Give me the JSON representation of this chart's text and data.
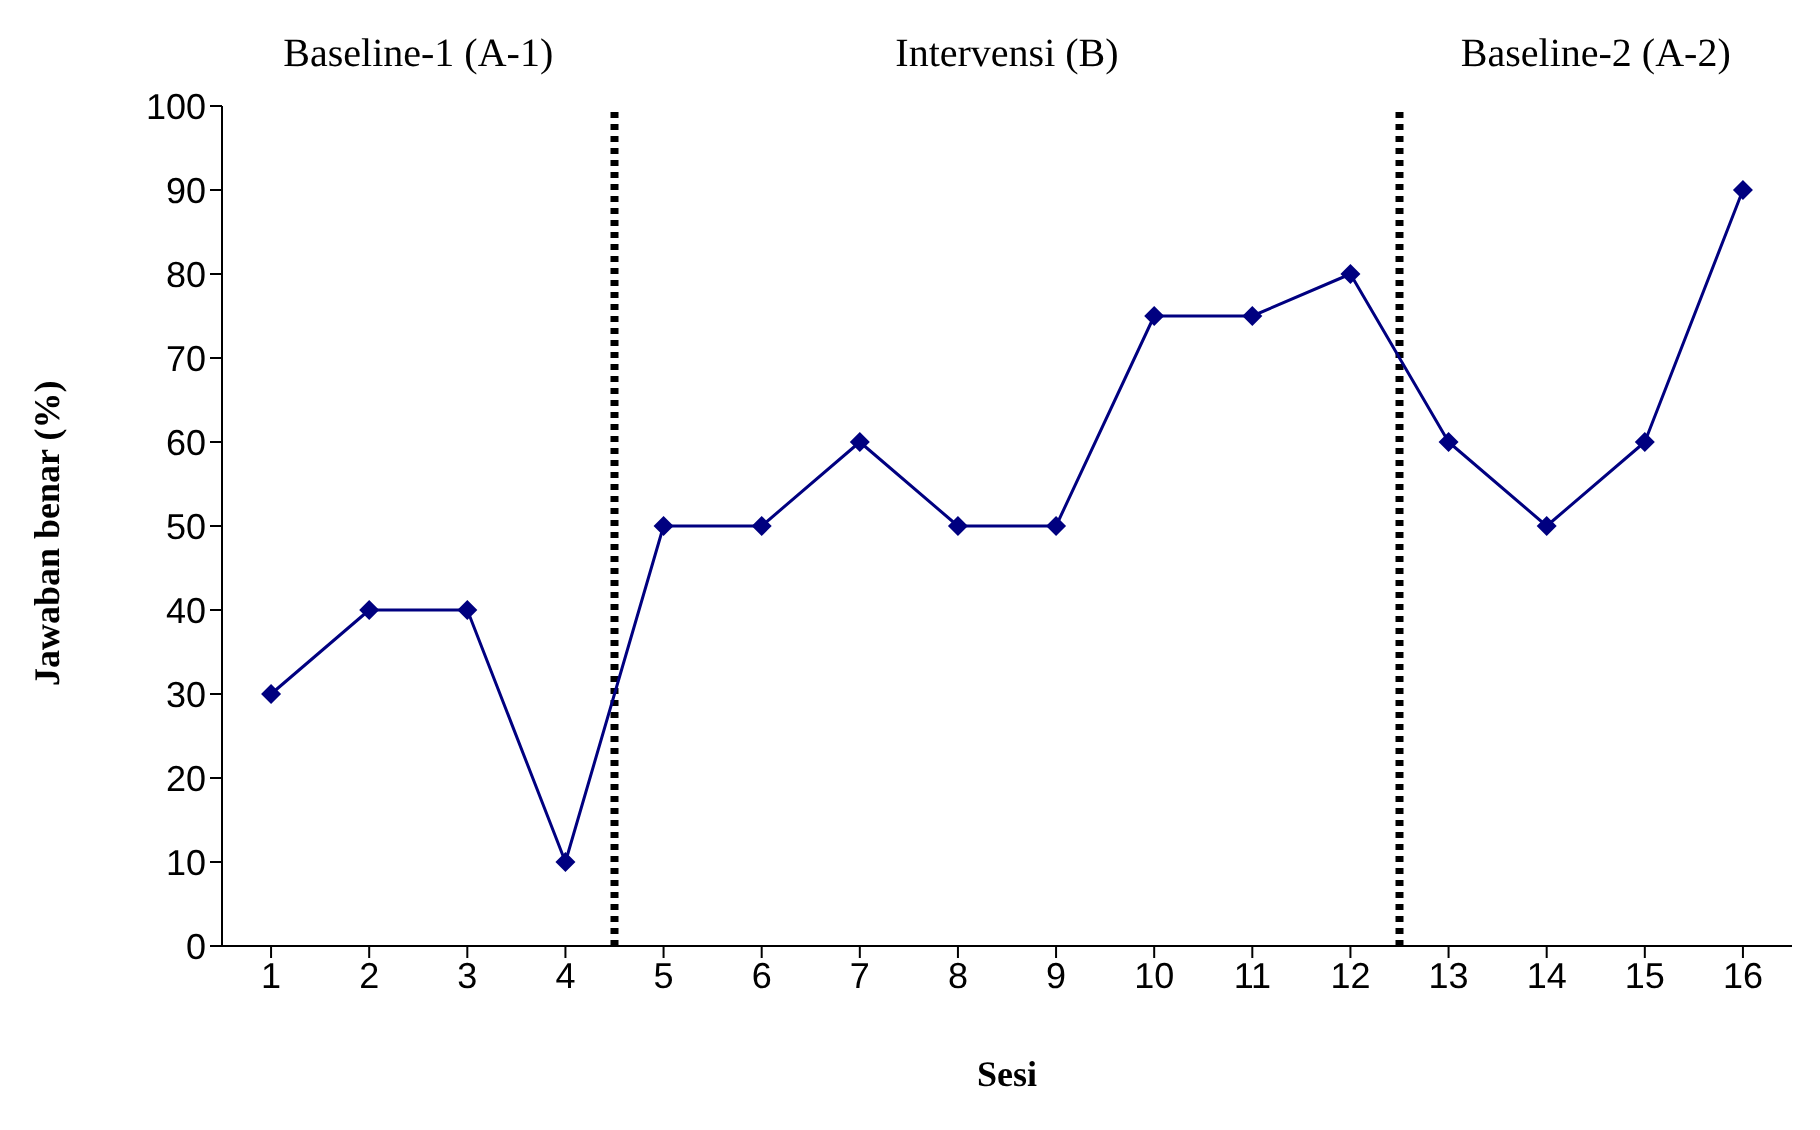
{
  "chart_data": {
    "type": "line",
    "xlabel": "Sesi",
    "ylabel": "Jawaban benar (%)",
    "x": [
      1,
      2,
      3,
      4,
      5,
      6,
      7,
      8,
      9,
      10,
      11,
      12,
      13,
      14,
      15,
      16
    ],
    "series": [
      {
        "color": "#000080",
        "values": [
          30,
          40,
          40,
          10,
          50,
          50,
          60,
          50,
          50,
          75,
          75,
          80,
          60,
          50,
          60,
          90
        ]
      }
    ],
    "xlim": [
      0.5,
      16.5
    ],
    "xticks": [
      1,
      2,
      3,
      4,
      5,
      6,
      7,
      8,
      9,
      10,
      11,
      12,
      13,
      14,
      15,
      16
    ],
    "ylim": [
      0,
      100
    ],
    "yticks": [
      0,
      10,
      20,
      30,
      40,
      50,
      60,
      70,
      80,
      90,
      100
    ],
    "ref_lines": [
      {
        "axis": "x",
        "value": 4.5,
        "color": "#000000",
        "line_style": "dotted"
      },
      {
        "axis": "x",
        "value": 12.5,
        "color": "#000000",
        "line_style": "dotted"
      }
    ],
    "annotations": [
      "Baseline-1 (A-1)",
      "Intervensi (B)",
      "Baseline-2 (A-2)"
    ],
    "marker": "diamond",
    "line_style": "solid",
    "grid": false,
    "legend": false
  }
}
